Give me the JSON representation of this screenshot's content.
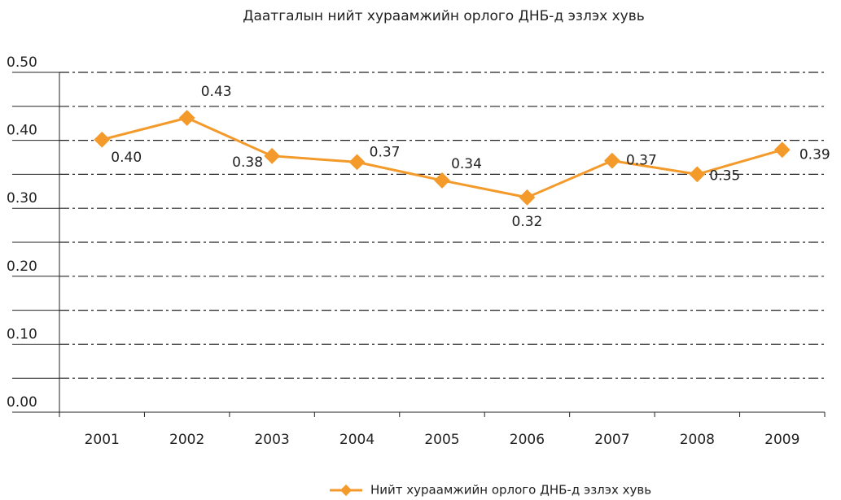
{
  "chart_data": {
    "type": "line",
    "title": "Даатгалын нийт хураамжийн орлого ДНБ-д эзлэх хувь",
    "categories": [
      "2001",
      "2002",
      "2003",
      "2004",
      "2005",
      "2006",
      "2007",
      "2008",
      "2009"
    ],
    "series": [
      {
        "name": "Нийт хураамжийн орлого ДНБ-д эзлэх хувь",
        "color": "#f39a2b",
        "values": [
          0.401,
          0.433,
          0.377,
          0.368,
          0.341,
          0.316,
          0.37,
          0.35,
          0.386
        ],
        "value_labels": [
          "0.40",
          "0.43",
          "0.38",
          "0.37",
          "0.34",
          "0.32",
          "0.37",
          "0.35",
          "0.39"
        ]
      }
    ],
    "ylim": [
      0,
      0.5
    ],
    "yticks": [
      {
        "value": 0,
        "label": "0.00"
      },
      {
        "value": 0.05,
        "label": null
      },
      {
        "value": 0.1,
        "label": "0.10"
      },
      {
        "value": 0.15,
        "label": null
      },
      {
        "value": 0.2,
        "label": "0.20"
      },
      {
        "value": 0.25,
        "label": null
      },
      {
        "value": 0.3,
        "label": "0.30"
      },
      {
        "value": 0.35,
        "label": null
      },
      {
        "value": 0.4,
        "label": "0.40"
      },
      {
        "value": 0.45,
        "label": null
      },
      {
        "value": 0.5,
        "label": "0.50"
      }
    ],
    "grid": true,
    "legend": "bottom"
  }
}
